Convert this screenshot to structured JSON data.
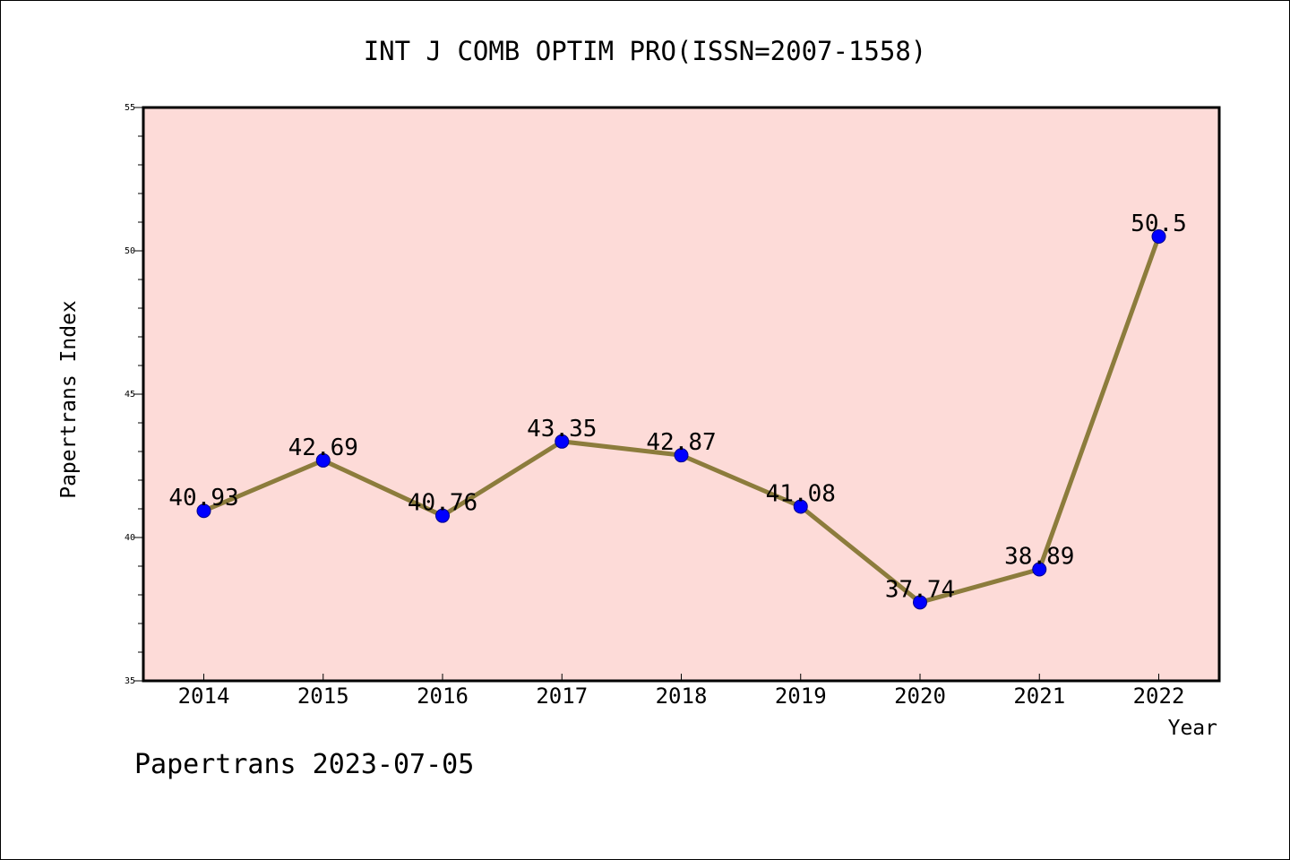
{
  "chart_data": {
    "type": "line",
    "title": "INT J COMB OPTIM PRO(ISSN=2007-1558)",
    "xlabel": "Year",
    "ylabel": "Papertrans Index",
    "categories": [
      "2014",
      "2015",
      "2016",
      "2017",
      "2018",
      "2019",
      "2020",
      "2021",
      "2022"
    ],
    "values": [
      40.93,
      42.69,
      40.76,
      43.35,
      42.87,
      41.08,
      37.74,
      38.89,
      50.5
    ],
    "data_labels": [
      "40.93",
      "42.69",
      "40.76",
      "43.35",
      "42.87",
      "41.08",
      "37.74",
      "38.89",
      "50.5"
    ],
    "ylim": [
      35,
      55
    ],
    "yticks": [
      35,
      40,
      45,
      50,
      55
    ],
    "grid": false,
    "colors": {
      "plot_background": "#fddbd8",
      "line": "#8c7c3c",
      "marker": "#0000ff"
    }
  },
  "footer": "Papertrans 2023-07-05"
}
